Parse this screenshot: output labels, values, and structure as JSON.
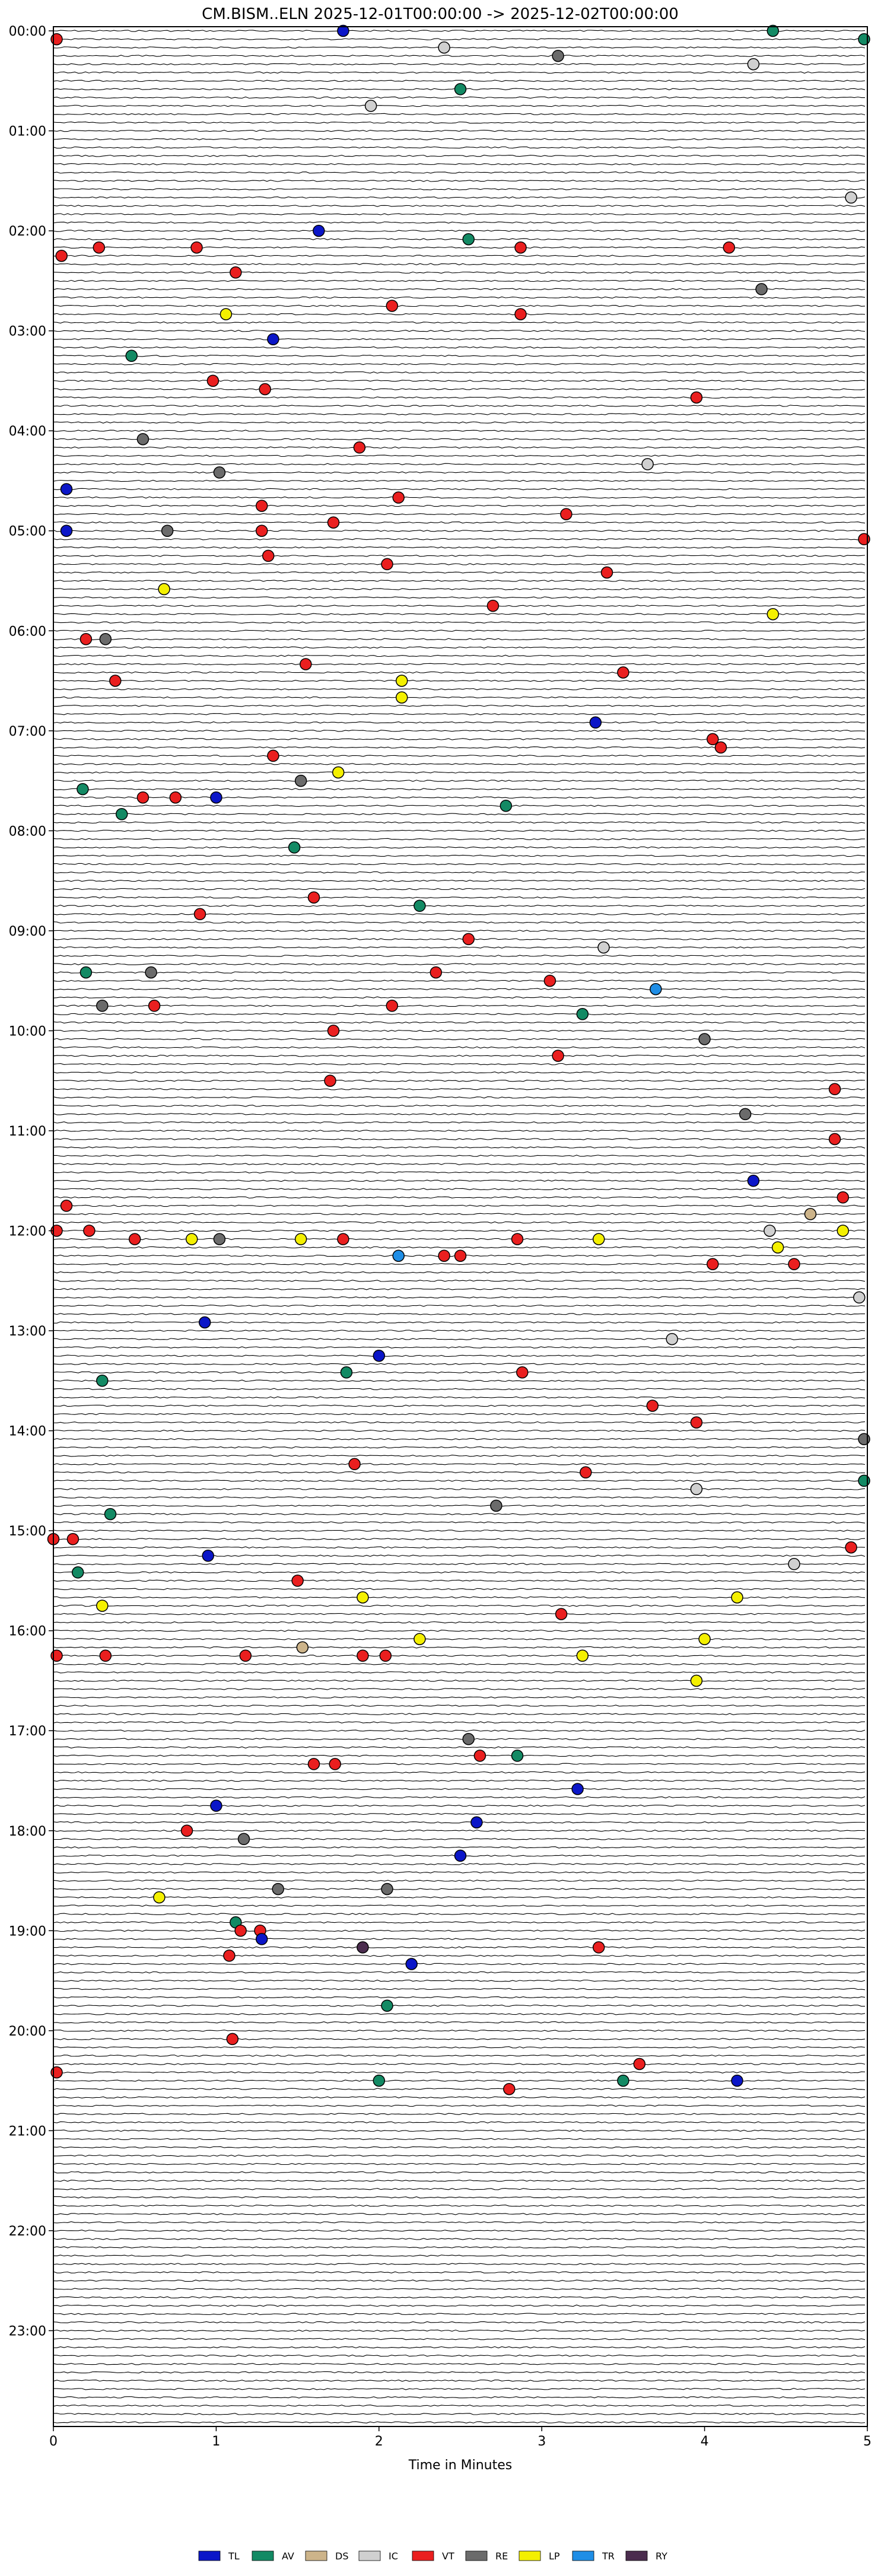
{
  "chart_data": {
    "type": "helicorder",
    "title": "CM.BISM..ELN  2025-12-01T00:00:00 -> 2025-12-02T00:00:00",
    "xlabel": "Time in Minutes",
    "ylabel": "",
    "xlim": [
      0,
      5
    ],
    "x_ticks": [
      "0",
      "1",
      "2",
      "3",
      "4",
      "5"
    ],
    "y_ticks": [
      "00:00",
      "01:00",
      "02:00",
      "03:00",
      "04:00",
      "05:00",
      "06:00",
      "07:00",
      "08:00",
      "09:00",
      "10:00",
      "11:00",
      "12:00",
      "13:00",
      "14:00",
      "15:00",
      "16:00",
      "17:00",
      "18:00",
      "19:00",
      "20:00",
      "21:00",
      "22:00",
      "23:00"
    ],
    "rows_per_hour": 12,
    "legend_position": "bottom-center",
    "legend": [
      {
        "code": "TL",
        "color": "#0b16c8"
      },
      {
        "code": "AV",
        "color": "#138a64"
      },
      {
        "code": "DS",
        "color": "#cdb48a"
      },
      {
        "code": "IC",
        "color": "#d0d0d0"
      },
      {
        "code": "VT",
        "color": "#ea1f1f"
      },
      {
        "code": "RE",
        "color": "#6b6b6b"
      },
      {
        "code": "LP",
        "color": "#f4f000"
      },
      {
        "code": "TR",
        "color": "#1f8ee6"
      },
      {
        "code": "RY",
        "color": "#4b2c4e"
      }
    ],
    "events": [
      {
        "t": "00:00",
        "x": 1.78,
        "cls": "TL"
      },
      {
        "t": "00:00",
        "x": 4.42,
        "cls": "AV"
      },
      {
        "t": "00:05",
        "x": 0.02,
        "cls": "VT"
      },
      {
        "t": "00:05",
        "x": 4.98,
        "cls": "AV"
      },
      {
        "t": "00:10",
        "x": 2.4,
        "cls": "IC"
      },
      {
        "t": "00:15",
        "x": 3.1,
        "cls": "RE"
      },
      {
        "t": "00:20",
        "x": 4.3,
        "cls": "IC"
      },
      {
        "t": "00:35",
        "x": 2.5,
        "cls": "AV"
      },
      {
        "t": "00:45",
        "x": 1.95,
        "cls": "IC"
      },
      {
        "t": "01:40",
        "x": 4.9,
        "cls": "IC"
      },
      {
        "t": "02:00",
        "x": 1.63,
        "cls": "TL"
      },
      {
        "t": "02:05",
        "x": 2.55,
        "cls": "AV"
      },
      {
        "t": "02:10",
        "x": 0.28,
        "cls": "VT"
      },
      {
        "t": "02:10",
        "x": 0.88,
        "cls": "VT"
      },
      {
        "t": "02:10",
        "x": 2.87,
        "cls": "VT"
      },
      {
        "t": "02:10",
        "x": 4.15,
        "cls": "VT"
      },
      {
        "t": "02:15",
        "x": 0.05,
        "cls": "VT"
      },
      {
        "t": "02:25",
        "x": 1.12,
        "cls": "VT"
      },
      {
        "t": "02:35",
        "x": 4.35,
        "cls": "RE"
      },
      {
        "t": "02:45",
        "x": 2.08,
        "cls": "VT"
      },
      {
        "t": "02:50",
        "x": 1.06,
        "cls": "LP"
      },
      {
        "t": "02:50",
        "x": 2.87,
        "cls": "VT"
      },
      {
        "t": "03:05",
        "x": 1.35,
        "cls": "TL"
      },
      {
        "t": "03:15",
        "x": 0.48,
        "cls": "AV"
      },
      {
        "t": "03:30",
        "x": 0.98,
        "cls": "VT"
      },
      {
        "t": "03:35",
        "x": 1.3,
        "cls": "VT"
      },
      {
        "t": "03:40",
        "x": 3.95,
        "cls": "VT"
      },
      {
        "t": "04:05",
        "x": 0.55,
        "cls": "RE"
      },
      {
        "t": "04:10",
        "x": 1.88,
        "cls": "VT"
      },
      {
        "t": "04:20",
        "x": 3.65,
        "cls": "IC"
      },
      {
        "t": "04:25",
        "x": 1.02,
        "cls": "RE"
      },
      {
        "t": "04:35",
        "x": 0.08,
        "cls": "TL"
      },
      {
        "t": "04:40",
        "x": 2.12,
        "cls": "VT"
      },
      {
        "t": "04:45",
        "x": 1.28,
        "cls": "VT"
      },
      {
        "t": "04:50",
        "x": 3.15,
        "cls": "VT"
      },
      {
        "t": "04:55",
        "x": 1.72,
        "cls": "VT"
      },
      {
        "t": "05:00",
        "x": 0.08,
        "cls": "TL"
      },
      {
        "t": "05:00",
        "x": 0.7,
        "cls": "RE"
      },
      {
        "t": "05:00",
        "x": 1.28,
        "cls": "VT"
      },
      {
        "t": "05:05",
        "x": 4.98,
        "cls": "VT"
      },
      {
        "t": "05:15",
        "x": 1.32,
        "cls": "VT"
      },
      {
        "t": "05:20",
        "x": 2.05,
        "cls": "VT"
      },
      {
        "t": "05:25",
        "x": 3.4,
        "cls": "VT"
      },
      {
        "t": "05:35",
        "x": 0.68,
        "cls": "LP"
      },
      {
        "t": "05:45",
        "x": 2.7,
        "cls": "VT"
      },
      {
        "t": "05:50",
        "x": 4.42,
        "cls": "LP"
      },
      {
        "t": "06:05",
        "x": 0.32,
        "cls": "RE"
      },
      {
        "t": "06:05",
        "x": 0.2,
        "cls": "VT"
      },
      {
        "t": "06:20",
        "x": 1.55,
        "cls": "VT"
      },
      {
        "t": "06:25",
        "x": 3.5,
        "cls": "VT"
      },
      {
        "t": "06:30",
        "x": 0.38,
        "cls": "VT"
      },
      {
        "t": "06:30",
        "x": 2.14,
        "cls": "LP"
      },
      {
        "t": "06:40",
        "x": 2.14,
        "cls": "LP"
      },
      {
        "t": "06:55",
        "x": 3.33,
        "cls": "TL"
      },
      {
        "t": "07:05",
        "x": 4.05,
        "cls": "VT"
      },
      {
        "t": "07:10",
        "x": 4.1,
        "cls": "VT"
      },
      {
        "t": "07:15",
        "x": 1.35,
        "cls": "VT"
      },
      {
        "t": "07:25",
        "x": 1.75,
        "cls": "LP"
      },
      {
        "t": "07:30",
        "x": 1.52,
        "cls": "RE"
      },
      {
        "t": "07:35",
        "x": 0.18,
        "cls": "AV"
      },
      {
        "t": "07:40",
        "x": 1.0,
        "cls": "TL"
      },
      {
        "t": "07:40",
        "x": 0.55,
        "cls": "VT"
      },
      {
        "t": "07:40",
        "x": 0.75,
        "cls": "VT"
      },
      {
        "t": "07:45",
        "x": 2.78,
        "cls": "AV"
      },
      {
        "t": "07:50",
        "x": 0.42,
        "cls": "AV"
      },
      {
        "t": "08:10",
        "x": 1.48,
        "cls": "AV"
      },
      {
        "t": "08:40",
        "x": 1.6,
        "cls": "VT"
      },
      {
        "t": "08:45",
        "x": 2.25,
        "cls": "AV"
      },
      {
        "t": "08:50",
        "x": 0.9,
        "cls": "VT"
      },
      {
        "t": "09:05",
        "x": 2.55,
        "cls": "VT"
      },
      {
        "t": "09:10",
        "x": 3.38,
        "cls": "IC"
      },
      {
        "t": "09:25",
        "x": 0.2,
        "cls": "AV"
      },
      {
        "t": "09:25",
        "x": 0.6,
        "cls": "RE"
      },
      {
        "t": "09:25",
        "x": 2.35,
        "cls": "VT"
      },
      {
        "t": "09:30",
        "x": 3.05,
        "cls": "VT"
      },
      {
        "t": "09:35",
        "x": 3.7,
        "cls": "TR"
      },
      {
        "t": "09:45",
        "x": 0.3,
        "cls": "RE"
      },
      {
        "t": "09:45",
        "x": 0.62,
        "cls": "VT"
      },
      {
        "t": "09:45",
        "x": 2.08,
        "cls": "VT"
      },
      {
        "t": "09:50",
        "x": 3.25,
        "cls": "AV"
      },
      {
        "t": "10:00",
        "x": 1.72,
        "cls": "VT"
      },
      {
        "t": "10:05",
        "x": 4.0,
        "cls": "RE"
      },
      {
        "t": "10:15",
        "x": 3.1,
        "cls": "VT"
      },
      {
        "t": "10:30",
        "x": 1.7,
        "cls": "VT"
      },
      {
        "t": "10:35",
        "x": 4.8,
        "cls": "VT"
      },
      {
        "t": "10:50",
        "x": 4.25,
        "cls": "RE"
      },
      {
        "t": "11:05",
        "x": 4.8,
        "cls": "VT"
      },
      {
        "t": "11:30",
        "x": 4.3,
        "cls": "TL"
      },
      {
        "t": "11:40",
        "x": 4.85,
        "cls": "VT"
      },
      {
        "t": "11:45",
        "x": 0.08,
        "cls": "VT"
      },
      {
        "t": "11:50",
        "x": 4.65,
        "cls": "DS"
      },
      {
        "t": "12:00",
        "x": 0.02,
        "cls": "VT"
      },
      {
        "t": "12:00",
        "x": 0.22,
        "cls": "VT"
      },
      {
        "t": "12:00",
        "x": 4.4,
        "cls": "IC"
      },
      {
        "t": "12:00",
        "x": 4.85,
        "cls": "LP"
      },
      {
        "t": "12:05",
        "x": 0.5,
        "cls": "VT"
      },
      {
        "t": "12:05",
        "x": 0.85,
        "cls": "LP"
      },
      {
        "t": "12:05",
        "x": 1.02,
        "cls": "RE"
      },
      {
        "t": "12:05",
        "x": 1.52,
        "cls": "LP"
      },
      {
        "t": "12:05",
        "x": 1.78,
        "cls": "VT"
      },
      {
        "t": "12:05",
        "x": 2.85,
        "cls": "VT"
      },
      {
        "t": "12:05",
        "x": 3.35,
        "cls": "LP"
      },
      {
        "t": "12:10",
        "x": 4.45,
        "cls": "LP"
      },
      {
        "t": "12:15",
        "x": 2.12,
        "cls": "TR"
      },
      {
        "t": "12:15",
        "x": 2.4,
        "cls": "VT"
      },
      {
        "t": "12:15",
        "x": 2.5,
        "cls": "VT"
      },
      {
        "t": "12:20",
        "x": 4.05,
        "cls": "VT"
      },
      {
        "t": "12:20",
        "x": 4.55,
        "cls": "VT"
      },
      {
        "t": "12:40",
        "x": 4.95,
        "cls": "IC"
      },
      {
        "t": "12:55",
        "x": 0.93,
        "cls": "TL"
      },
      {
        "t": "13:05",
        "x": 3.8,
        "cls": "IC"
      },
      {
        "t": "13:15",
        "x": 2.0,
        "cls": "TL"
      },
      {
        "t": "13:25",
        "x": 1.8,
        "cls": "AV"
      },
      {
        "t": "13:25",
        "x": 2.88,
        "cls": "VT"
      },
      {
        "t": "13:30",
        "x": 0.3,
        "cls": "AV"
      },
      {
        "t": "13:45",
        "x": 3.68,
        "cls": "VT"
      },
      {
        "t": "13:55",
        "x": 3.95,
        "cls": "VT"
      },
      {
        "t": "14:05",
        "x": 4.98,
        "cls": "RE"
      },
      {
        "t": "14:20",
        "x": 1.85,
        "cls": "VT"
      },
      {
        "t": "14:25",
        "x": 3.27,
        "cls": "VT"
      },
      {
        "t": "14:30",
        "x": 4.98,
        "cls": "AV"
      },
      {
        "t": "14:35",
        "x": 3.95,
        "cls": "IC"
      },
      {
        "t": "14:45",
        "x": 2.72,
        "cls": "RE"
      },
      {
        "t": "14:50",
        "x": 0.35,
        "cls": "AV"
      },
      {
        "t": "15:05",
        "x": 0.0,
        "cls": "VT"
      },
      {
        "t": "15:05",
        "x": 0.12,
        "cls": "VT"
      },
      {
        "t": "15:10",
        "x": 4.9,
        "cls": "VT"
      },
      {
        "t": "15:15",
        "x": 0.95,
        "cls": "TL"
      },
      {
        "t": "15:20",
        "x": 4.55,
        "cls": "IC"
      },
      {
        "t": "15:25",
        "x": 0.15,
        "cls": "AV"
      },
      {
        "t": "15:30",
        "x": 1.5,
        "cls": "VT"
      },
      {
        "t": "15:40",
        "x": 1.9,
        "cls": "LP"
      },
      {
        "t": "15:40",
        "x": 4.2,
        "cls": "LP"
      },
      {
        "t": "15:45",
        "x": 0.3,
        "cls": "LP"
      },
      {
        "t": "15:50",
        "x": 3.12,
        "cls": "VT"
      },
      {
        "t": "16:05",
        "x": 2.25,
        "cls": "LP"
      },
      {
        "t": "16:05",
        "x": 4.0,
        "cls": "LP"
      },
      {
        "t": "16:10",
        "x": 1.53,
        "cls": "DS"
      },
      {
        "t": "16:15",
        "x": 0.02,
        "cls": "VT"
      },
      {
        "t": "16:15",
        "x": 0.32,
        "cls": "VT"
      },
      {
        "t": "16:15",
        "x": 1.18,
        "cls": "VT"
      },
      {
        "t": "16:15",
        "x": 1.9,
        "cls": "VT"
      },
      {
        "t": "16:15",
        "x": 2.04,
        "cls": "VT"
      },
      {
        "t": "16:15",
        "x": 3.25,
        "cls": "LP"
      },
      {
        "t": "16:30",
        "x": 3.95,
        "cls": "LP"
      },
      {
        "t": "17:05",
        "x": 2.55,
        "cls": "RE"
      },
      {
        "t": "17:15",
        "x": 2.62,
        "cls": "VT"
      },
      {
        "t": "17:15",
        "x": 2.85,
        "cls": "AV"
      },
      {
        "t": "17:20",
        "x": 1.6,
        "cls": "VT"
      },
      {
        "t": "17:20",
        "x": 1.73,
        "cls": "VT"
      },
      {
        "t": "17:35",
        "x": 3.22,
        "cls": "TL"
      },
      {
        "t": "17:45",
        "x": 1.0,
        "cls": "TL"
      },
      {
        "t": "17:55",
        "x": 2.6,
        "cls": "TL"
      },
      {
        "t": "18:00",
        "x": 0.82,
        "cls": "VT"
      },
      {
        "t": "18:05",
        "x": 1.17,
        "cls": "RE"
      },
      {
        "t": "18:15",
        "x": 2.5,
        "cls": "TL"
      },
      {
        "t": "18:35",
        "x": 1.38,
        "cls": "RE"
      },
      {
        "t": "18:35",
        "x": 2.05,
        "cls": "RE"
      },
      {
        "t": "18:40",
        "x": 0.65,
        "cls": "LP"
      },
      {
        "t": "18:55",
        "x": 1.12,
        "cls": "AV"
      },
      {
        "t": "19:00",
        "x": 1.15,
        "cls": "VT"
      },
      {
        "t": "19:00",
        "x": 1.27,
        "cls": "VT"
      },
      {
        "t": "19:05",
        "x": 1.28,
        "cls": "TL"
      },
      {
        "t": "19:10",
        "x": 1.9,
        "cls": "RY"
      },
      {
        "t": "19:10",
        "x": 3.35,
        "cls": "VT"
      },
      {
        "t": "19:15",
        "x": 1.08,
        "cls": "VT"
      },
      {
        "t": "19:20",
        "x": 2.2,
        "cls": "TL"
      },
      {
        "t": "19:45",
        "x": 2.05,
        "cls": "AV"
      },
      {
        "t": "20:05",
        "x": 1.1,
        "cls": "VT"
      },
      {
        "t": "20:20",
        "x": 3.6,
        "cls": "VT"
      },
      {
        "t": "20:25",
        "x": 0.02,
        "cls": "VT"
      },
      {
        "t": "20:30",
        "x": 2.0,
        "cls": "AV"
      },
      {
        "t": "20:30",
        "x": 3.5,
        "cls": "AV"
      },
      {
        "t": "20:30",
        "x": 4.2,
        "cls": "TL"
      },
      {
        "t": "20:35",
        "x": 2.8,
        "cls": "VT"
      }
    ]
  },
  "legend_items": [
    {
      "code": "TL"
    },
    {
      "code": "AV"
    },
    {
      "code": "DS"
    },
    {
      "code": "IC"
    },
    {
      "code": "VT"
    },
    {
      "code": "RE"
    },
    {
      "code": "LP"
    },
    {
      "code": "TR"
    },
    {
      "code": "RY"
    }
  ]
}
